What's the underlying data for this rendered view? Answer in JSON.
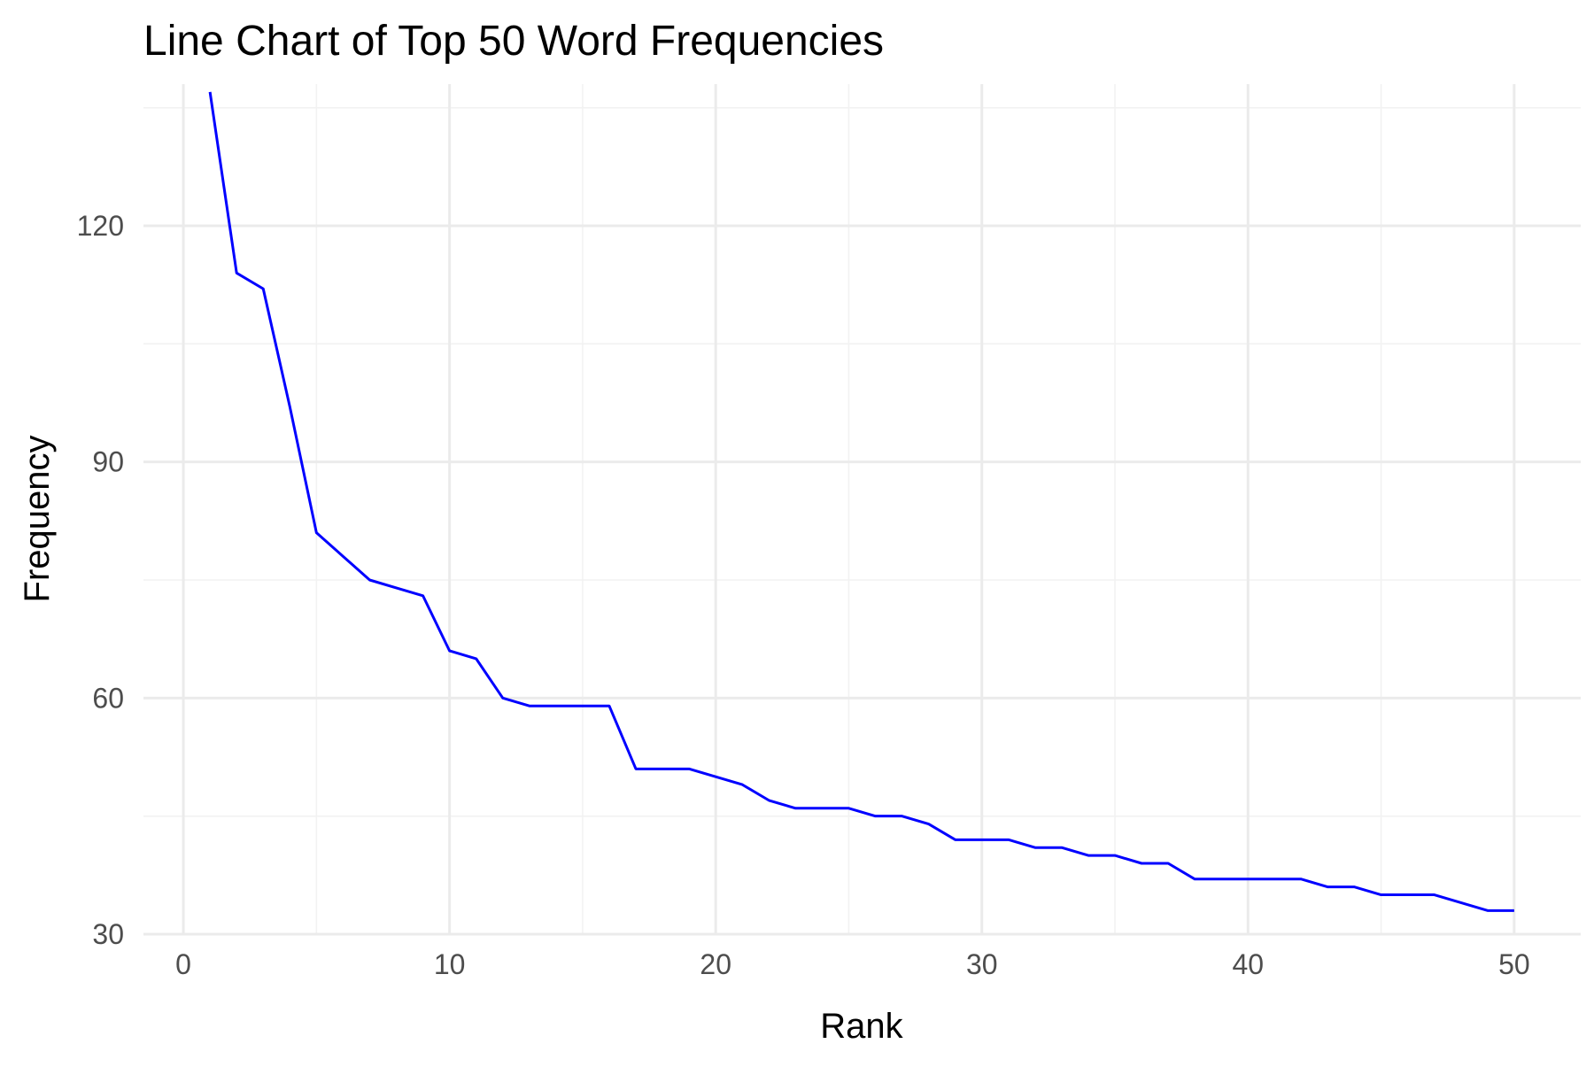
{
  "chart_data": {
    "type": "line",
    "title": "Line Chart of Top 50 Word Frequencies",
    "xlabel": "Rank",
    "ylabel": "Frequency",
    "xlim": [
      -1.5,
      52.5
    ],
    "ylim": [
      30,
      138
    ],
    "x_ticks": [
      0,
      10,
      20,
      30,
      40,
      50
    ],
    "y_ticks": [
      30,
      60,
      90,
      120
    ],
    "x_minor_ticks": [
      5,
      15,
      25,
      35,
      45
    ],
    "y_minor_ticks": [
      45,
      75,
      105,
      135
    ],
    "grid": true,
    "legend": "none",
    "line_color": "#0000ff",
    "x": [
      1,
      2,
      3,
      4,
      5,
      6,
      7,
      8,
      9,
      10,
      11,
      12,
      13,
      14,
      15,
      16,
      17,
      18,
      19,
      20,
      21,
      22,
      23,
      24,
      25,
      26,
      27,
      28,
      29,
      30,
      31,
      32,
      33,
      34,
      35,
      36,
      37,
      38,
      39,
      40,
      41,
      42,
      43,
      44,
      45,
      46,
      47,
      48,
      49,
      50
    ],
    "values": [
      137,
      114,
      112,
      97,
      81,
      78,
      75,
      74,
      73,
      66,
      65,
      60,
      59,
      59,
      59,
      59,
      51,
      51,
      51,
      50,
      49,
      47,
      46,
      46,
      46,
      45,
      45,
      44,
      42,
      42,
      42,
      41,
      41,
      40,
      40,
      39,
      39,
      37,
      37,
      37,
      37,
      37,
      36,
      36,
      35,
      35,
      35,
      34,
      33,
      33
    ]
  }
}
